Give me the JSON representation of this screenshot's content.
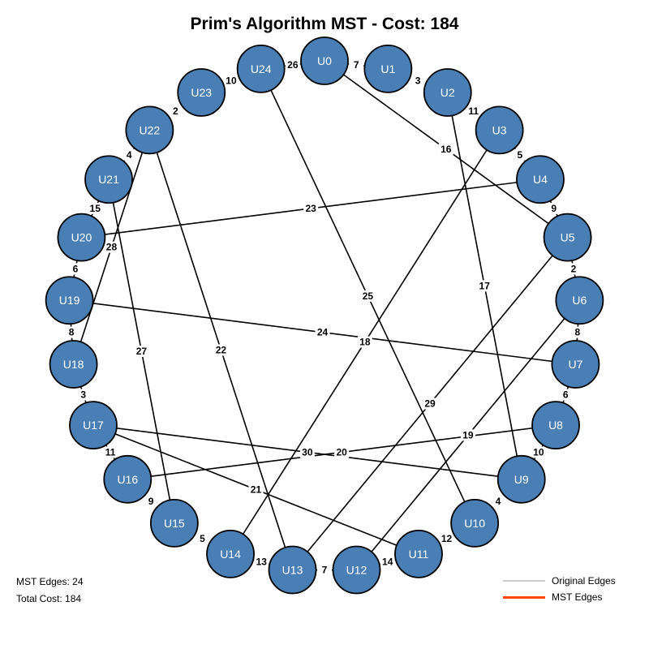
{
  "title": "Prim's Algorithm MST - Cost: 184",
  "graph": {
    "nodes": [
      "U0",
      "U1",
      "U2",
      "U3",
      "U4",
      "U5",
      "U6",
      "U7",
      "U8",
      "U9",
      "U10",
      "U11",
      "U12",
      "U13",
      "U14",
      "U15",
      "U16",
      "U17",
      "U18",
      "U19",
      "U20",
      "U21",
      "U22",
      "U23",
      "U24"
    ],
    "edges": [
      {
        "from": "U0",
        "to": "U1",
        "weight": "7"
      },
      {
        "from": "U1",
        "to": "U2",
        "weight": "3"
      },
      {
        "from": "U2",
        "to": "U3",
        "weight": "11"
      },
      {
        "from": "U3",
        "to": "U4",
        "weight": "5"
      },
      {
        "from": "U4",
        "to": "U5",
        "weight": "9"
      },
      {
        "from": "U5",
        "to": "U6",
        "weight": "2"
      },
      {
        "from": "U6",
        "to": "U7",
        "weight": "8"
      },
      {
        "from": "U7",
        "to": "U8",
        "weight": "6"
      },
      {
        "from": "U8",
        "to": "U9",
        "weight": "10"
      },
      {
        "from": "U9",
        "to": "U10",
        "weight": "4"
      },
      {
        "from": "U10",
        "to": "U11",
        "weight": "12"
      },
      {
        "from": "U11",
        "to": "U12",
        "weight": "14"
      },
      {
        "from": "U12",
        "to": "U13",
        "weight": "7"
      },
      {
        "from": "U13",
        "to": "U14",
        "weight": "13"
      },
      {
        "from": "U14",
        "to": "U15",
        "weight": "5"
      },
      {
        "from": "U15",
        "to": "U16",
        "weight": "9"
      },
      {
        "from": "U16",
        "to": "U17",
        "weight": "11"
      },
      {
        "from": "U17",
        "to": "U18",
        "weight": "3"
      },
      {
        "from": "U18",
        "to": "U19",
        "weight": "8"
      },
      {
        "from": "U19",
        "to": "U20",
        "weight": "6"
      },
      {
        "from": "U20",
        "to": "U21",
        "weight": "15"
      },
      {
        "from": "U21",
        "to": "U22",
        "weight": "4"
      },
      {
        "from": "U22",
        "to": "U23",
        "weight": "2"
      },
      {
        "from": "U23",
        "to": "U24",
        "weight": "10"
      },
      {
        "from": "U24",
        "to": "U0",
        "weight": "26"
      },
      {
        "from": "U0",
        "to": "U5",
        "weight": "16"
      },
      {
        "from": "U2",
        "to": "U9",
        "weight": "17"
      },
      {
        "from": "U3",
        "to": "U14",
        "weight": "18"
      },
      {
        "from": "U6",
        "to": "U12",
        "weight": "19"
      },
      {
        "from": "U8",
        "to": "U16",
        "weight": "20"
      },
      {
        "from": "U11",
        "to": "U17",
        "weight": "21"
      },
      {
        "from": "U13",
        "to": "U22",
        "weight": "22"
      },
      {
        "from": "U4",
        "to": "U20",
        "weight": "23"
      },
      {
        "from": "U7",
        "to": "U19",
        "weight": "24"
      },
      {
        "from": "U10",
        "to": "U24",
        "weight": "25"
      },
      {
        "from": "U15",
        "to": "U21",
        "weight": "27"
      },
      {
        "from": "U18",
        "to": "U22",
        "weight": "28"
      },
      {
        "from": "U5",
        "to": "U13",
        "weight": "29"
      },
      {
        "from": "U9",
        "to": "U17",
        "weight": "30"
      }
    ]
  },
  "stats": {
    "mst_edges": "MST Edges: 24",
    "total_cost": "Total Cost: 184"
  },
  "legend": {
    "items": [
      {
        "label": "Original Edges",
        "color": "#cccccc"
      },
      {
        "label": "MST Edges",
        "color": "#ff4500"
      }
    ]
  }
}
